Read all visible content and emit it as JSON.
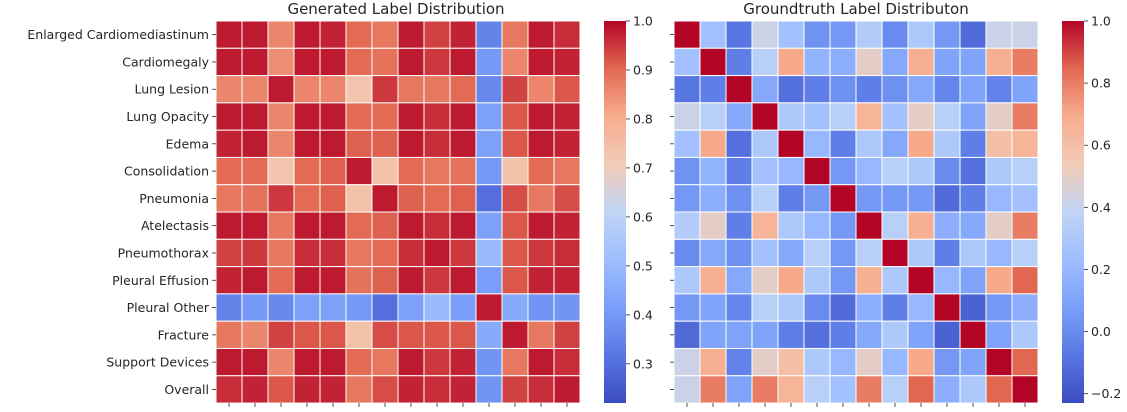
{
  "chart_data": [
    {
      "type": "heatmap",
      "title": "Generated Label Distribution",
      "row_labels": [
        "Enlarged Cardiomediastinum",
        "Cardiomegaly",
        "Lung Lesion",
        "Lung Opacity",
        "Edema",
        "Consolidation",
        "Pneumonia",
        "Atelectasis",
        "Pneumothorax",
        "Pleural Effusion",
        "Pleural Other",
        "Fracture",
        "Support Devices",
        "Overall"
      ],
      "col_labels": [],
      "values": [
        [
          0.98,
          0.98,
          0.86,
          0.98,
          0.97,
          0.9,
          0.88,
          0.98,
          0.94,
          0.97,
          0.35,
          0.88,
          0.98,
          0.96
        ],
        [
          0.98,
          0.98,
          0.85,
          0.98,
          0.98,
          0.9,
          0.89,
          0.98,
          0.95,
          0.98,
          0.4,
          0.86,
          0.98,
          0.97
        ],
        [
          0.86,
          0.86,
          0.98,
          0.86,
          0.86,
          0.73,
          0.95,
          0.88,
          0.88,
          0.9,
          0.36,
          0.94,
          0.86,
          0.92
        ],
        [
          0.98,
          0.98,
          0.86,
          0.98,
          0.98,
          0.9,
          0.9,
          0.98,
          0.96,
          0.98,
          0.42,
          0.92,
          0.98,
          0.97
        ],
        [
          0.97,
          0.98,
          0.86,
          0.98,
          0.98,
          0.91,
          0.91,
          0.98,
          0.96,
          0.98,
          0.42,
          0.92,
          0.98,
          0.97
        ],
        [
          0.9,
          0.9,
          0.73,
          0.9,
          0.91,
          0.98,
          0.74,
          0.9,
          0.88,
          0.89,
          0.4,
          0.74,
          0.9,
          0.88
        ],
        [
          0.88,
          0.89,
          0.95,
          0.9,
          0.91,
          0.74,
          0.98,
          0.91,
          0.9,
          0.91,
          0.3,
          0.93,
          0.88,
          0.93
        ],
        [
          0.98,
          0.98,
          0.88,
          0.98,
          0.98,
          0.9,
          0.91,
          0.98,
          0.96,
          0.98,
          0.42,
          0.92,
          0.98,
          0.97
        ],
        [
          0.94,
          0.95,
          0.88,
          0.96,
          0.96,
          0.88,
          0.9,
          0.96,
          0.98,
          0.95,
          0.5,
          0.92,
          0.95,
          0.96
        ],
        [
          0.97,
          0.98,
          0.9,
          0.98,
          0.98,
          0.89,
          0.91,
          0.98,
          0.95,
          0.98,
          0.41,
          0.92,
          0.97,
          0.97
        ],
        [
          0.35,
          0.4,
          0.36,
          0.42,
          0.42,
          0.4,
          0.3,
          0.42,
          0.5,
          0.41,
          0.98,
          0.45,
          0.39,
          0.39
        ],
        [
          0.88,
          0.86,
          0.94,
          0.92,
          0.92,
          0.74,
          0.93,
          0.92,
          0.92,
          0.92,
          0.45,
          0.98,
          0.88,
          0.94
        ],
        [
          0.98,
          0.98,
          0.86,
          0.98,
          0.98,
          0.9,
          0.88,
          0.98,
          0.95,
          0.97,
          0.39,
          0.88,
          0.98,
          0.96
        ],
        [
          0.96,
          0.97,
          0.92,
          0.97,
          0.97,
          0.88,
          0.93,
          0.97,
          0.96,
          0.97,
          0.39,
          0.94,
          0.96,
          0.98
        ]
      ],
      "colorbar": {
        "min": 0.22,
        "max": 1.0,
        "ticks": [
          0.3,
          0.4,
          0.5,
          0.6,
          0.7,
          0.8,
          0.9,
          1.0
        ],
        "tick_labels": [
          "0.3",
          "0.4",
          "0.5",
          "0.6",
          "0.7",
          "0.8",
          "0.9",
          "1.0"
        ]
      },
      "colormap": "coolwarm"
    },
    {
      "type": "heatmap",
      "title": "Groundtruth Label Distributon",
      "row_labels": [],
      "col_labels": [],
      "values": [
        [
          1.0,
          0.25,
          -0.08,
          0.42,
          0.25,
          0.03,
          0.05,
          0.32,
          0.0,
          0.3,
          0.05,
          -0.12,
          0.42,
          0.42
        ],
        [
          0.25,
          1.0,
          -0.05,
          0.35,
          0.7,
          0.18,
          0.15,
          0.5,
          0.12,
          0.68,
          0.1,
          0.1,
          0.68,
          0.8
        ],
        [
          -0.08,
          -0.05,
          1.0,
          0.12,
          -0.1,
          -0.05,
          0.02,
          -0.05,
          0.02,
          0.12,
          -0.02,
          0.1,
          -0.03,
          0.1
        ],
        [
          0.42,
          0.35,
          0.12,
          1.0,
          0.3,
          0.25,
          0.35,
          0.65,
          0.25,
          0.5,
          0.35,
          0.1,
          0.5,
          0.8
        ],
        [
          0.25,
          0.7,
          -0.1,
          0.3,
          1.0,
          0.2,
          -0.05,
          0.3,
          0.12,
          0.7,
          0.3,
          -0.05,
          0.6,
          0.65
        ],
        [
          0.03,
          0.18,
          -0.05,
          0.25,
          0.2,
          1.0,
          0.05,
          0.2,
          0.35,
          0.3,
          0.0,
          -0.1,
          0.3,
          0.35
        ],
        [
          0.05,
          0.15,
          0.02,
          0.35,
          -0.05,
          0.05,
          1.0,
          0.05,
          0.05,
          0.05,
          -0.12,
          -0.05,
          0.2,
          0.25
        ],
        [
          0.32,
          0.5,
          -0.05,
          0.65,
          0.3,
          0.2,
          0.05,
          1.0,
          0.35,
          0.68,
          0.15,
          0.12,
          0.5,
          0.8
        ],
        [
          0.0,
          0.12,
          0.02,
          0.25,
          0.12,
          0.35,
          0.05,
          0.35,
          1.0,
          0.3,
          -0.05,
          0.3,
          0.2,
          0.35
        ],
        [
          0.3,
          0.68,
          0.12,
          0.5,
          0.7,
          0.3,
          0.05,
          0.68,
          0.3,
          1.0,
          0.2,
          0.1,
          0.7,
          0.85
        ],
        [
          0.05,
          0.1,
          -0.02,
          0.35,
          0.3,
          0.0,
          -0.12,
          0.15,
          -0.05,
          0.2,
          1.0,
          -0.15,
          0.05,
          0.15
        ],
        [
          -0.12,
          0.1,
          0.1,
          0.1,
          -0.05,
          -0.1,
          -0.05,
          0.12,
          0.3,
          0.1,
          -0.15,
          1.0,
          0.1,
          0.3
        ],
        [
          0.42,
          0.68,
          -0.03,
          0.5,
          0.6,
          0.3,
          0.2,
          0.5,
          0.2,
          0.7,
          0.05,
          0.1,
          1.0,
          0.85
        ],
        [
          0.42,
          0.8,
          0.1,
          0.8,
          0.65,
          0.35,
          0.25,
          0.8,
          0.35,
          0.85,
          0.15,
          0.3,
          0.85,
          1.0
        ]
      ],
      "colorbar": {
        "min": -0.23,
        "max": 1.0,
        "ticks": [
          -0.2,
          0.0,
          0.2,
          0.4,
          0.6,
          0.8,
          1.0
        ],
        "tick_labels": [
          "−0.2",
          "0.0",
          "0.2",
          "0.4",
          "0.6",
          "0.8",
          "1.0"
        ]
      },
      "colormap": "coolwarm"
    }
  ]
}
